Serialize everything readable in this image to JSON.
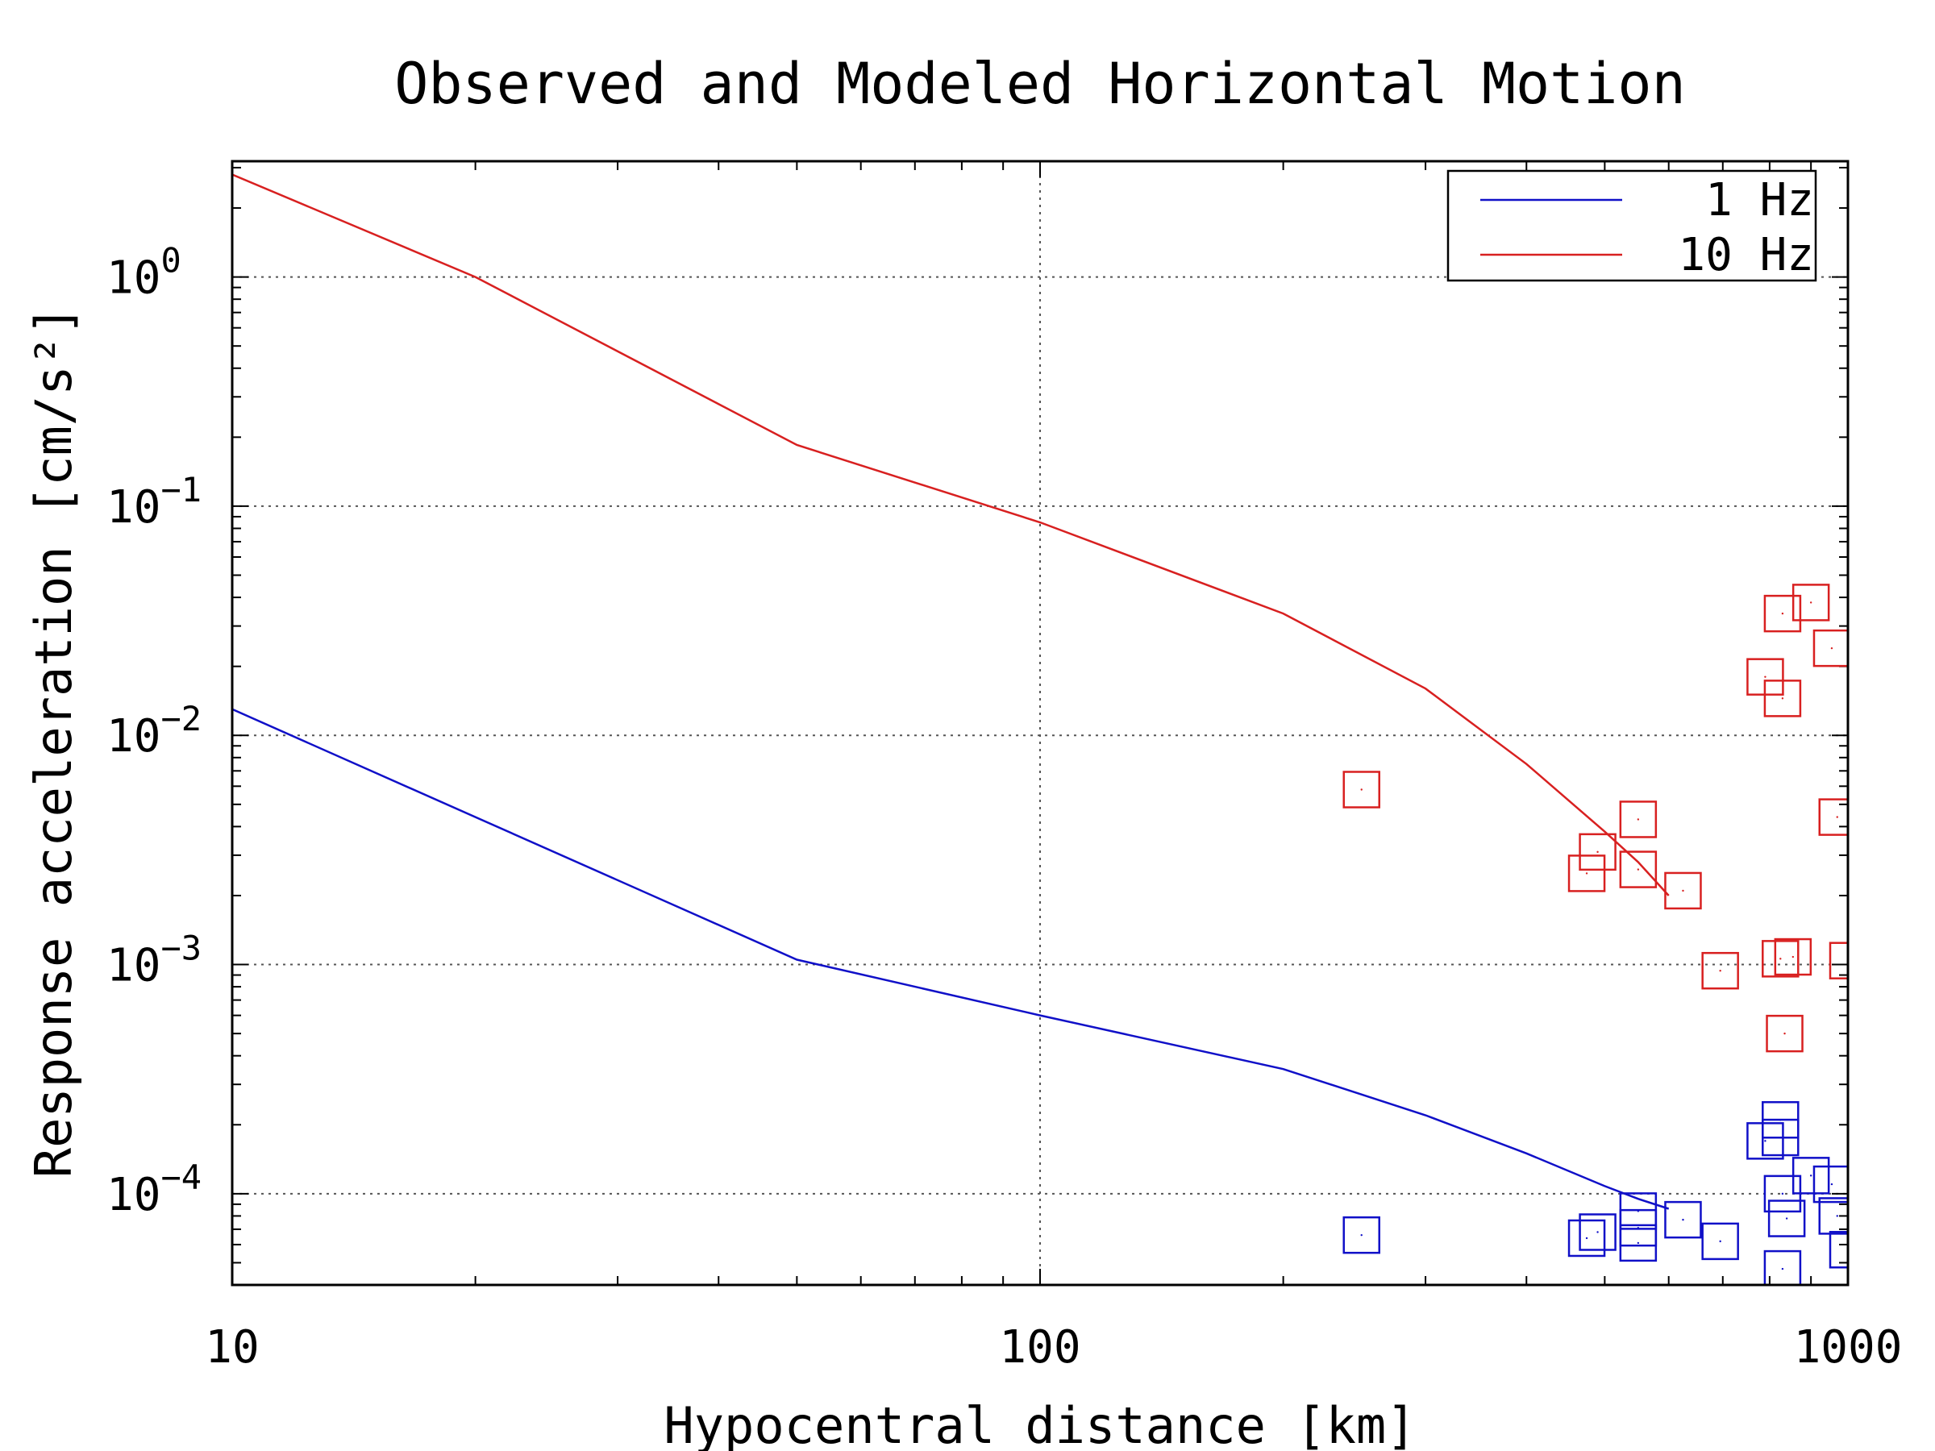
{
  "chart_data": {
    "type": "scatter",
    "title": "Observed and Modeled Horizontal Motion",
    "xlabel": "Hypocentral distance [km]",
    "ylabel": "Response acceleration [cm/s²]",
    "x_scale": "log",
    "y_scale": "log",
    "xlim": [
      10,
      1000
    ],
    "ylim": [
      4e-05,
      3.2
    ],
    "x_ticks": [
      {
        "value": 10,
        "label": "10"
      },
      {
        "value": 100,
        "label": "100"
      },
      {
        "value": 1000,
        "label": "1000"
      }
    ],
    "y_ticks": [
      {
        "value": 1,
        "base": "10",
        "exp": "0"
      },
      {
        "value": 0.1,
        "base": "10",
        "exp": "−1"
      },
      {
        "value": 0.01,
        "base": "10",
        "exp": "−2"
      },
      {
        "value": 0.001,
        "base": "10",
        "exp": "−3"
      },
      {
        "value": 0.0001,
        "base": "10",
        "exp": "−4"
      }
    ],
    "grid": true,
    "legend_position": "top-right",
    "series": [
      {
        "name": "1 Hz",
        "color": "#1010c8",
        "line": {
          "x": [
            10,
            50,
            100,
            200,
            300,
            400,
            500,
            550,
            600
          ],
          "y": [
            0.013,
            0.00105,
            0.0006,
            0.00035,
            0.00022,
            0.00015,
            0.000108,
            9.5e-05,
            8.6e-05
          ]
        },
        "points": {
          "x": [
            250,
            475,
            490,
            550,
            550,
            550,
            625,
            695,
            790,
            825,
            825,
            830,
            830,
            840,
            900,
            955,
            970,
            1000
          ],
          "y": [
            6.6e-05,
            6.4e-05,
            6.8e-05,
            8.4e-05,
            7.1e-05,
            6.1e-05,
            7.7e-05,
            6.2e-05,
            0.00017,
            0.00021,
            0.000176,
            0.0001,
            4.7e-05,
            7.8e-05,
            0.00012,
            0.00011,
            8e-05,
            5.7e-05
          ]
        }
      },
      {
        "name": "10 Hz",
        "color": "#d82020",
        "line": {
          "x": [
            10,
            20,
            50,
            100,
            200,
            300,
            400,
            500,
            550,
            600
          ],
          "y": [
            2.8,
            1.0,
            0.185,
            0.085,
            0.034,
            0.016,
            0.0075,
            0.0038,
            0.0028,
            0.002
          ]
        },
        "points": {
          "x": [
            250,
            475,
            490,
            550,
            550,
            625,
            695,
            790,
            825,
            830,
            830,
            835,
            855,
            900,
            955,
            970,
            1000
          ],
          "y": [
            0.0058,
            0.0025,
            0.0031,
            0.0043,
            0.0026,
            0.0021,
            0.00094,
            0.018,
            0.00106,
            0.034,
            0.0145,
            0.0005,
            0.00108,
            0.038,
            0.024,
            0.0044,
            0.00104
          ]
        }
      }
    ]
  }
}
